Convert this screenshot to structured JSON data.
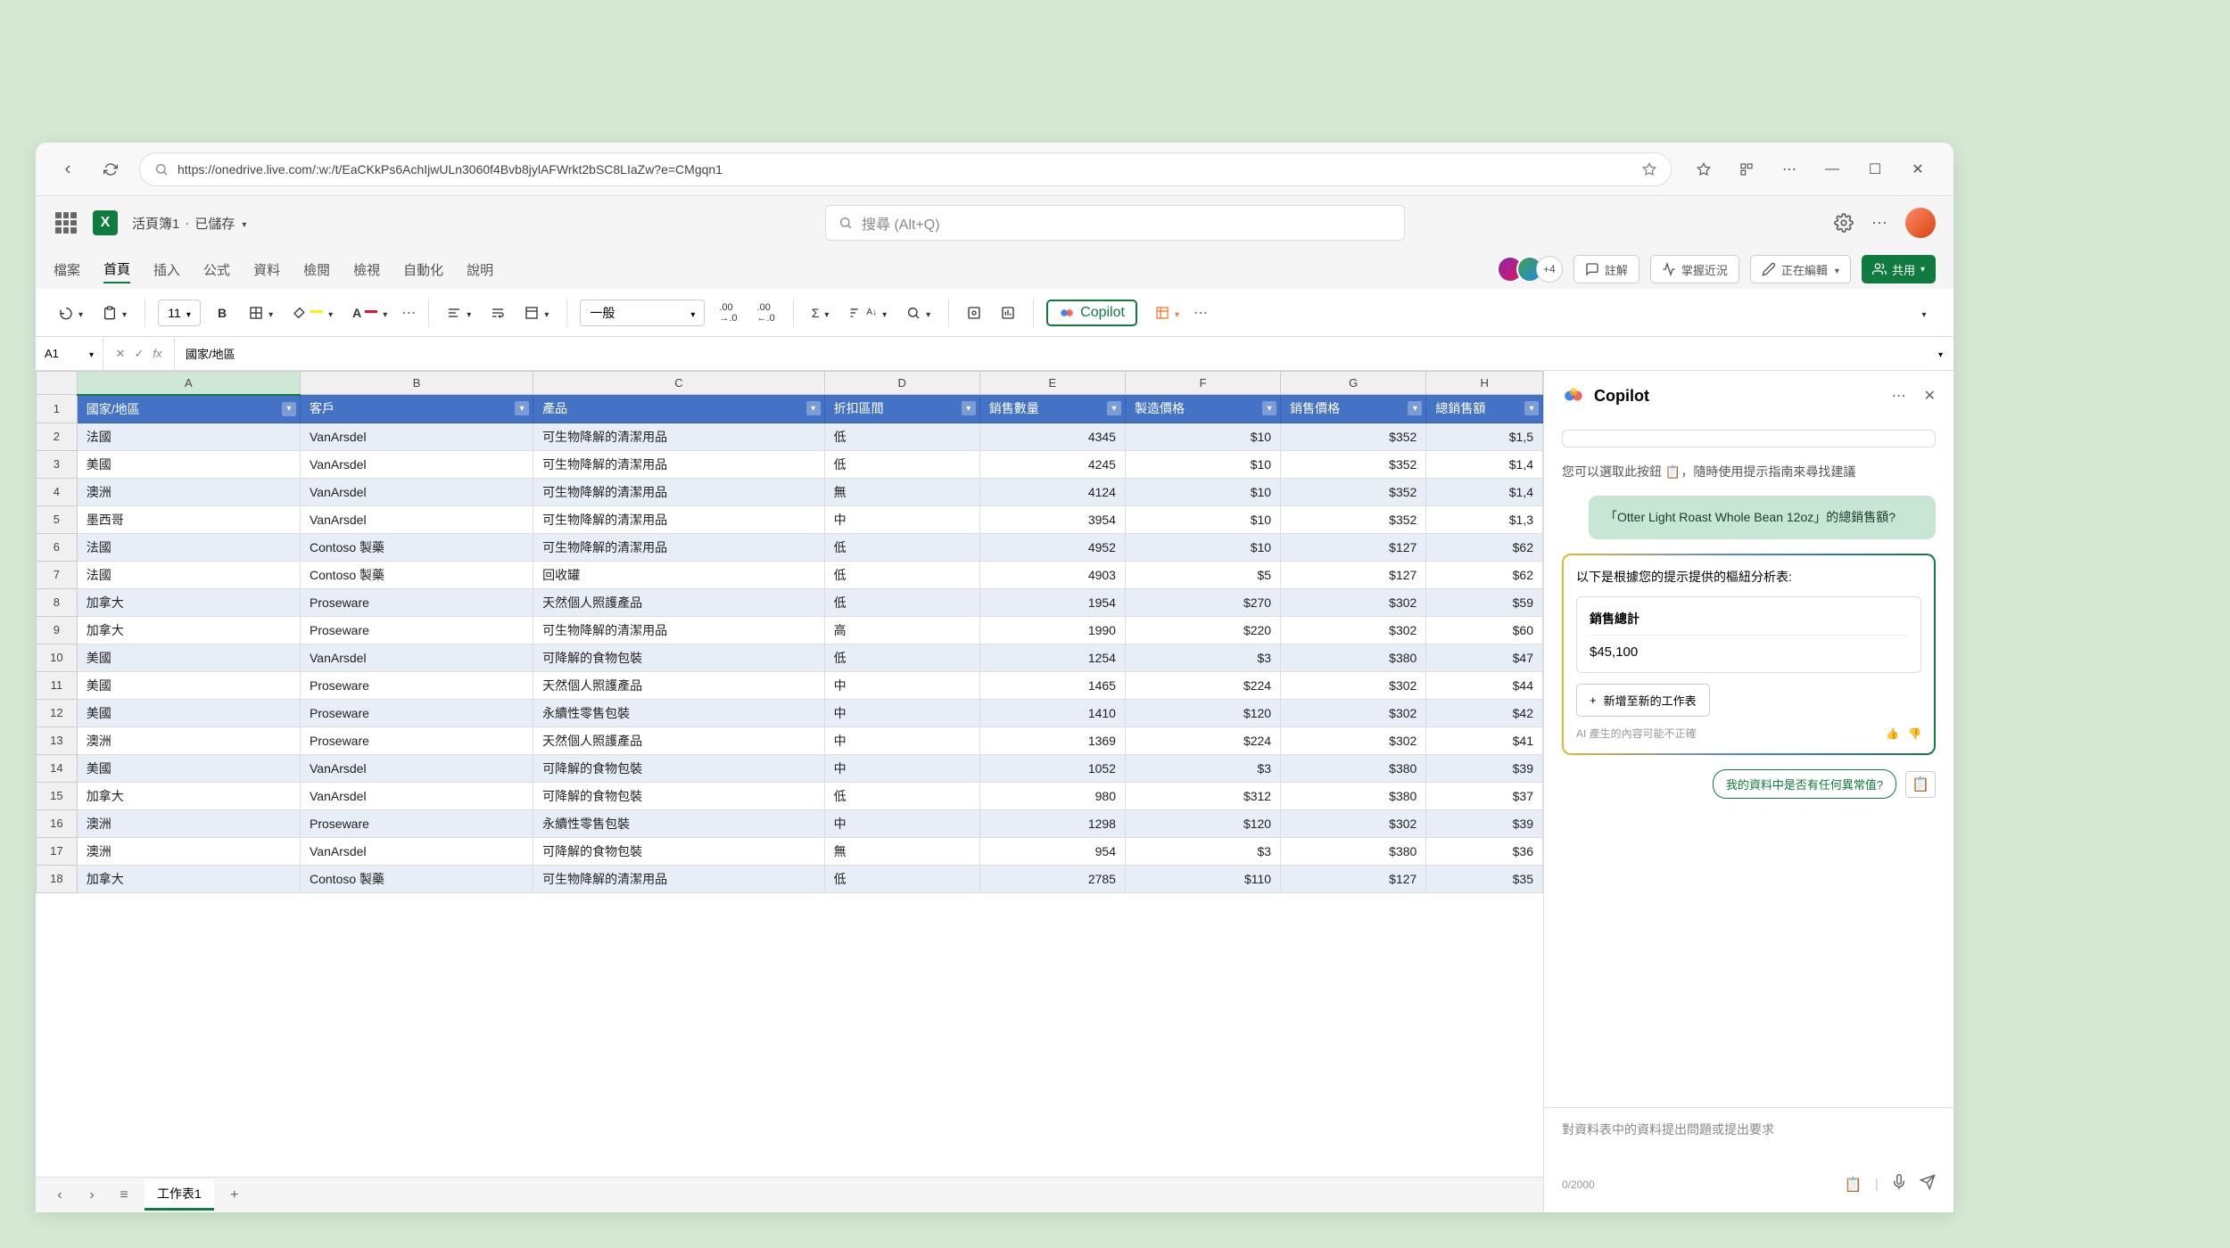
{
  "browser": {
    "url": "https://onedrive.live.com/:w:/t/EaCKkPs6AchIjwULn3060f4Bvb8jylAFWrkt2bSC8LIaZw?e=CMgqn1"
  },
  "app": {
    "doc_title": "活頁簿1",
    "saved_status": "已儲存",
    "search_placeholder": "搜尋 (Alt+Q)"
  },
  "menu": {
    "tabs": [
      "檔案",
      "首頁",
      "插入",
      "公式",
      "資料",
      "檢閱",
      "檢視",
      "自動化",
      "說明"
    ],
    "active_index": 1,
    "collab_extra": "+4",
    "comments": "註解",
    "catchup": "掌握近況",
    "editing": "正在編輯",
    "share": "共用"
  },
  "ribbon": {
    "font_size": "11",
    "number_format": "一般",
    "copilot": "Copilot"
  },
  "formula": {
    "cell_ref": "A1",
    "value": "國家/地區"
  },
  "sheet": {
    "columns": [
      "A",
      "B",
      "C",
      "D",
      "E",
      "F",
      "G",
      "H"
    ],
    "selected_col_index": 0,
    "headers": [
      "國家/地區",
      "客戶",
      "產品",
      "折扣區間",
      "銷售數量",
      "製造價格",
      "銷售價格",
      "總銷售額"
    ],
    "rows": [
      [
        "法國",
        "VanArsdel",
        "可生物降解的清潔用品",
        "低",
        "4345",
        "$10",
        "$352",
        "$1,5"
      ],
      [
        "美國",
        "VanArsdel",
        "可生物降解的清潔用品",
        "低",
        "4245",
        "$10",
        "$352",
        "$1,4"
      ],
      [
        "澳洲",
        "VanArsdel",
        "可生物降解的清潔用品",
        "無",
        "4124",
        "$10",
        "$352",
        "$1,4"
      ],
      [
        "墨西哥",
        "VanArsdel",
        "可生物降解的清潔用品",
        "中",
        "3954",
        "$10",
        "$352",
        "$1,3"
      ],
      [
        "法國",
        "Contoso 製藥",
        "可生物降解的清潔用品",
        "低",
        "4952",
        "$10",
        "$127",
        "$62"
      ],
      [
        "法國",
        "Contoso 製藥",
        "回收罐",
        "低",
        "4903",
        "$5",
        "$127",
        "$62"
      ],
      [
        "加拿大",
        "Proseware",
        "天然個人照護產品",
        "低",
        "1954",
        "$270",
        "$302",
        "$59"
      ],
      [
        "加拿大",
        "Proseware",
        "可生物降解的清潔用品",
        "高",
        "1990",
        "$220",
        "$302",
        "$60"
      ],
      [
        "美國",
        "VanArsdel",
        "可降解的食物包裝",
        "低",
        "1254",
        "$3",
        "$380",
        "$47"
      ],
      [
        "美國",
        "Proseware",
        "天然個人照護產品",
        "中",
        "1465",
        "$224",
        "$302",
        "$44"
      ],
      [
        "美國",
        "Proseware",
        "永續性零售包裝",
        "中",
        "1410",
        "$120",
        "$302",
        "$42"
      ],
      [
        "澳洲",
        "Proseware",
        "天然個人照護產品",
        "中",
        "1369",
        "$224",
        "$302",
        "$41"
      ],
      [
        "美國",
        "VanArsdel",
        "可降解的食物包裝",
        "中",
        "1052",
        "$3",
        "$380",
        "$39"
      ],
      [
        "加拿大",
        "VanArsdel",
        "可降解的食物包裝",
        "低",
        "980",
        "$312",
        "$380",
        "$37"
      ],
      [
        "澳洲",
        "Proseware",
        "永續性零售包裝",
        "中",
        "1298",
        "$120",
        "$302",
        "$39"
      ],
      [
        "澳洲",
        "VanArsdel",
        "可降解的食物包裝",
        "無",
        "954",
        "$3",
        "$380",
        "$36"
      ],
      [
        "加拿大",
        "Contoso 製藥",
        "可生物降解的清潔用品",
        "低",
        "2785",
        "$110",
        "$127",
        "$35"
      ]
    ],
    "active_tab": "工作表1"
  },
  "copilot": {
    "title": "Copilot",
    "hint": "您可以選取此按鈕 📋，隨時使用提示指南來尋找建議",
    "user_message": "「Otter Light Roast Whole Bean 12oz」的總銷售額?",
    "response_intro": "以下是根據您的提示提供的樞紐分析表:",
    "card_title": "銷售總計",
    "card_value": "$45,100",
    "add_action": "新增至新的工作表",
    "disclaimer": "AI 產生的內容可能不正確",
    "suggestion": "我的資料中是否有任何異常值?",
    "input_placeholder": "對資料表中的資料提出問題或提出要求",
    "counter": "0/2000"
  },
  "colors": {
    "accent": "#0f7b3e",
    "table_header": "#4472c4",
    "row_even": "#e8eef7",
    "page_bg": "#d4e8d4",
    "user_msg_bg": "#c8e6d4"
  }
}
